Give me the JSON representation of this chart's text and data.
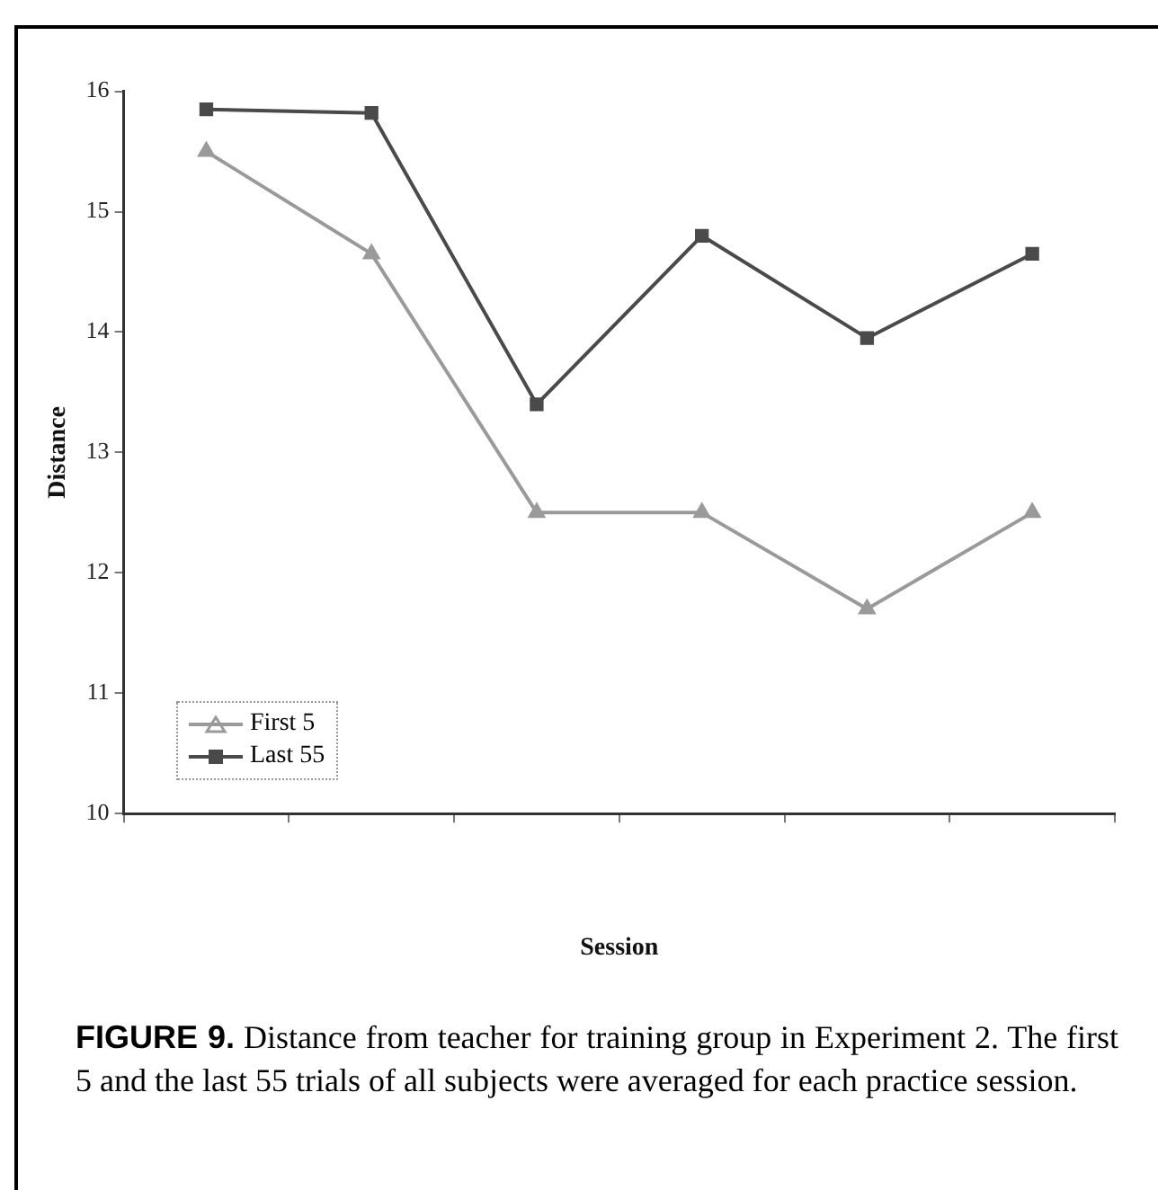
{
  "chart_data": {
    "type": "line",
    "xlabel": "Session",
    "ylabel": "Distance",
    "categories": [
      null,
      null,
      null,
      null,
      null,
      null
    ],
    "series": [
      {
        "name": "First 5",
        "color": "#9a9a9a",
        "marker": "triangle",
        "values": [
          15.5,
          14.65,
          12.5,
          12.5,
          11.7,
          12.5
        ]
      },
      {
        "name": "Last 55",
        "color": "#4a4a4a",
        "marker": "square",
        "values": [
          15.85,
          15.82,
          13.4,
          14.8,
          13.95,
          14.65
        ]
      }
    ],
    "ylim": [
      10,
      16
    ],
    "yticks": [
      10,
      11,
      12,
      13,
      14,
      15,
      16
    ],
    "grid": false,
    "legend": "bottom left",
    "annotations": [
      "FIGURE 9. Distance from teacher for training group in Experiment 2. The first 5 and the last 55 trials of all subjects were averaged for each practice session."
    ]
  }
}
